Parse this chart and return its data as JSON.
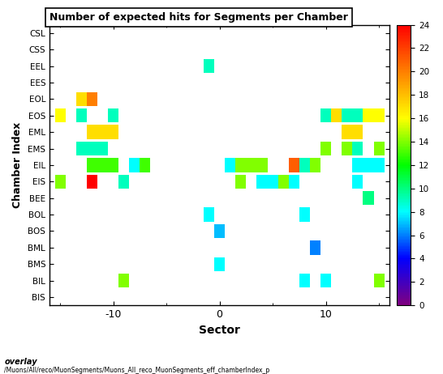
{
  "title": "Number of expected hits for Segments per Chamber",
  "xlabel": "Sector",
  "ylabel": "Chamber Index",
  "chambers": [
    "BIS",
    "BIL",
    "BMS",
    "BML",
    "BOS",
    "BOL",
    "BEE",
    "EIS",
    "EIL",
    "EMS",
    "EML",
    "EOS",
    "EOL",
    "EES",
    "EEL",
    "CSS",
    "CSL"
  ],
  "sector_min": -16,
  "sector_max": 16,
  "cmap_min": 0,
  "cmap_max": 24,
  "points": [
    {
      "sector": -15,
      "chamber": "EOS",
      "value": 16
    },
    {
      "sector": -13,
      "chamber": "EOL",
      "value": 17
    },
    {
      "sector": -13,
      "chamber": "EOS",
      "value": 9
    },
    {
      "sector": -13,
      "chamber": "EMS",
      "value": 9
    },
    {
      "sector": -12,
      "chamber": "EOL",
      "value": 20
    },
    {
      "sector": -12,
      "chamber": "EML",
      "value": 17
    },
    {
      "sector": -12,
      "chamber": "EMS",
      "value": 9
    },
    {
      "sector": -12,
      "chamber": "EIL",
      "value": 13
    },
    {
      "sector": -12,
      "chamber": "EIS",
      "value": 24
    },
    {
      "sector": -11,
      "chamber": "EML",
      "value": 17
    },
    {
      "sector": -11,
      "chamber": "EIL",
      "value": 13
    },
    {
      "sector": -11,
      "chamber": "EMS",
      "value": 9
    },
    {
      "sector": -10,
      "chamber": "EOS",
      "value": 9
    },
    {
      "sector": -10,
      "chamber": "EML",
      "value": 17
    },
    {
      "sector": -10,
      "chamber": "EIL",
      "value": 13
    },
    {
      "sector": -8,
      "chamber": "EIL",
      "value": 8
    },
    {
      "sector": -7,
      "chamber": "EIL",
      "value": 13
    },
    {
      "sector": -9,
      "chamber": "EIS",
      "value": 9
    },
    {
      "sector": -15,
      "chamber": "EIS",
      "value": 14
    },
    {
      "sector": -1,
      "chamber": "BOL",
      "value": 8
    },
    {
      "sector": -1,
      "chamber": "EEL",
      "value": 9
    },
    {
      "sector": 0,
      "chamber": "BOS",
      "value": 7
    },
    {
      "sector": 0,
      "chamber": "BMS",
      "value": 8
    },
    {
      "sector": 1,
      "chamber": "EIL",
      "value": 8
    },
    {
      "sector": 2,
      "chamber": "EIS",
      "value": 14
    },
    {
      "sector": 2,
      "chamber": "EIL",
      "value": 14
    },
    {
      "sector": 3,
      "chamber": "EIL",
      "value": 14
    },
    {
      "sector": 4,
      "chamber": "EIL",
      "value": 14
    },
    {
      "sector": 4,
      "chamber": "EIS",
      "value": 8
    },
    {
      "sector": 5,
      "chamber": "EIS",
      "value": 8
    },
    {
      "sector": 6,
      "chamber": "EIS",
      "value": 14
    },
    {
      "sector": 7,
      "chamber": "EIS",
      "value": 8
    },
    {
      "sector": 7,
      "chamber": "EIL",
      "value": 21
    },
    {
      "sector": 8,
      "chamber": "BIL",
      "value": 8
    },
    {
      "sector": 8,
      "chamber": "BOL",
      "value": 8
    },
    {
      "sector": 8,
      "chamber": "EIL",
      "value": 9
    },
    {
      "sector": 9,
      "chamber": "BML",
      "value": 6
    },
    {
      "sector": 9,
      "chamber": "EIL",
      "value": 14
    },
    {
      "sector": 10,
      "chamber": "BIL",
      "value": 8
    },
    {
      "sector": 10,
      "chamber": "EOS",
      "value": 9
    },
    {
      "sector": 10,
      "chamber": "EMS",
      "value": 14
    },
    {
      "sector": 11,
      "chamber": "EOS",
      "value": 17
    },
    {
      "sector": 12,
      "chamber": "EOS",
      "value": 9
    },
    {
      "sector": 12,
      "chamber": "EML",
      "value": 17
    },
    {
      "sector": 12,
      "chamber": "EMS",
      "value": 14
    },
    {
      "sector": 13,
      "chamber": "EOS",
      "value": 9
    },
    {
      "sector": 13,
      "chamber": "EML",
      "value": 17
    },
    {
      "sector": 13,
      "chamber": "EMS",
      "value": 9
    },
    {
      "sector": 13,
      "chamber": "EIL",
      "value": 8
    },
    {
      "sector": 13,
      "chamber": "EIS",
      "value": 8
    },
    {
      "sector": 14,
      "chamber": "EOS",
      "value": 16
    },
    {
      "sector": 14,
      "chamber": "EIL",
      "value": 8
    },
    {
      "sector": 14,
      "chamber": "BEE",
      "value": 10
    },
    {
      "sector": 15,
      "chamber": "EIL",
      "value": 8
    },
    {
      "sector": 15,
      "chamber": "EOS",
      "value": 16
    },
    {
      "sector": 15,
      "chamber": "EMS",
      "value": 14
    },
    {
      "sector": 15,
      "chamber": "BIL",
      "value": 14
    },
    {
      "sector": -9,
      "chamber": "BIL",
      "value": 14
    }
  ],
  "footer_line1": "overlay",
  "footer_line2": "/Muons/All/reco/MuonSegments/Muons_All_reco_MuonSegments_eff_chamberIndex_p",
  "background_color": "#ffffff"
}
